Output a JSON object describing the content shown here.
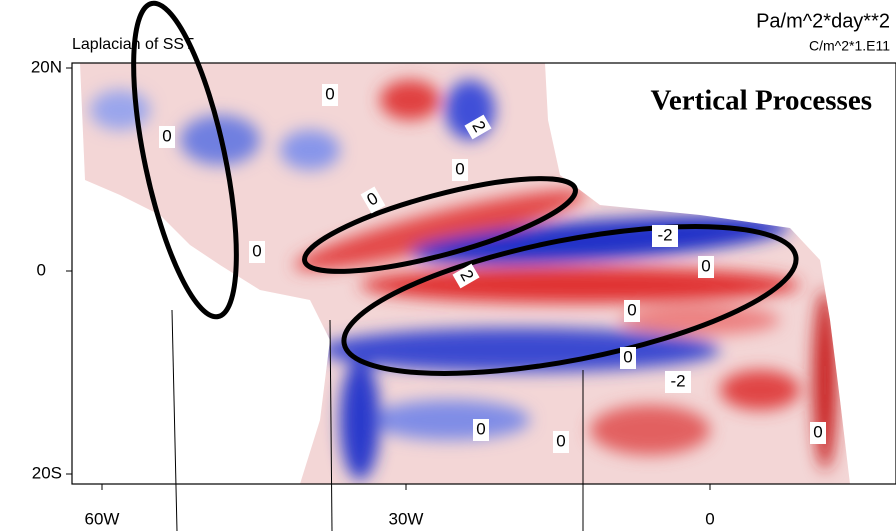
{
  "header": {
    "title": "Laplacian of SST",
    "units_top": "Pa/m^2*day**2",
    "units_bottom": "C/m^2*1.E11",
    "overlay_title": "Vertical Processes"
  },
  "axes": {
    "lat_labels": [
      "20N",
      "0",
      "20S"
    ],
    "lon_labels": [
      "60W",
      "30W",
      "0"
    ]
  },
  "contour_labels": [
    "0",
    "2",
    "0",
    "0",
    "0",
    "0",
    "-2",
    "2",
    "0",
    "0",
    "0",
    "-2",
    "0",
    "0",
    "0"
  ]
}
